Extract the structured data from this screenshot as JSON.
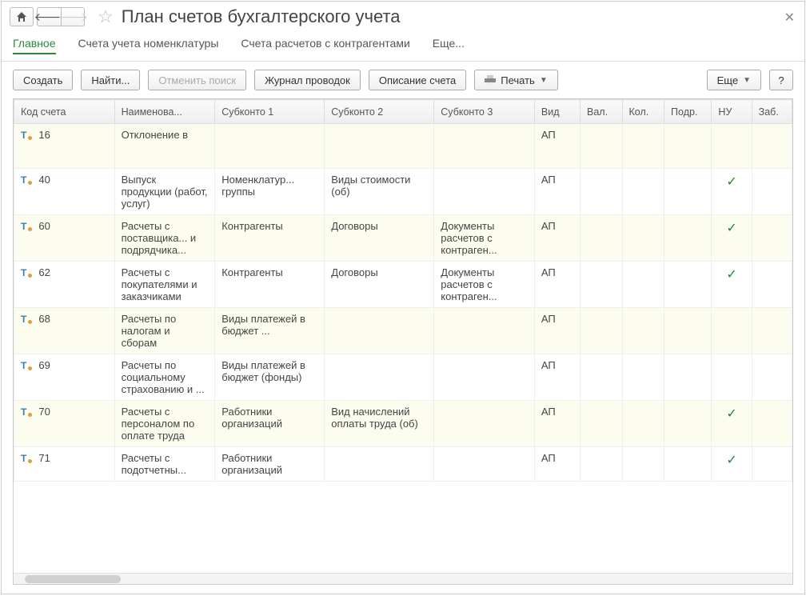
{
  "header": {
    "title": "План счетов бухгалтерского учета"
  },
  "tabs": {
    "main": "Главное",
    "nomenclature": "Счета учета номенклатуры",
    "counterparties": "Счета расчетов с контрагентами",
    "more": "Еще..."
  },
  "toolbar": {
    "create": "Создать",
    "find": "Найти...",
    "cancel_search": "Отменить поиск",
    "journal": "Журнал проводок",
    "description": "Описание счета",
    "print": "Печать",
    "more": "Еще",
    "help": "?"
  },
  "columns": {
    "code": "Код счета",
    "name": "Наименова...",
    "sub1": "Субконто 1",
    "sub2": "Субконто 2",
    "sub3": "Субконто 3",
    "kind": "Вид",
    "val": "Вал.",
    "kol": "Кол.",
    "podr": "Подр.",
    "nu": "НУ",
    "zab": "Заб."
  },
  "col_widths": [
    "110",
    "110",
    "120",
    "120",
    "110",
    "50",
    "46",
    "46",
    "52",
    "44",
    "44"
  ],
  "rows": [
    {
      "code": "16",
      "name": "Отклонение в",
      "sub1": "",
      "sub2": "",
      "sub3": "",
      "kind": "АП",
      "nu": false,
      "big": true,
      "alt": true
    },
    {
      "code": "40",
      "name": "Выпуск продукции (работ, услуг)",
      "sub1": "Номенклатур... группы",
      "sub2": "Виды стоимости (об)",
      "sub3": "",
      "kind": "АП",
      "nu": true,
      "alt": false
    },
    {
      "code": "60",
      "name": "Расчеты с поставщика... и подрядчика...",
      "sub1": "Контрагенты",
      "sub2": "Договоры",
      "sub3": "Документы расчетов с контраген...",
      "kind": "АП",
      "nu": true,
      "alt": true
    },
    {
      "code": "62",
      "name": "Расчеты с покупателями и заказчиками",
      "sub1": "Контрагенты",
      "sub2": "Договоры",
      "sub3": "Документы расчетов с контраген...",
      "kind": "АП",
      "nu": true,
      "alt": false
    },
    {
      "code": "68",
      "name": "Расчеты по налогам и сборам",
      "sub1": "Виды платежей в бюджет ...",
      "sub2": "",
      "sub3": "",
      "kind": "АП",
      "nu": false,
      "alt": true
    },
    {
      "code": "69",
      "name": "Расчеты по социальному страхованию и ...",
      "sub1": "Виды платежей в бюджет (фонды)",
      "sub2": "",
      "sub3": "",
      "kind": "АП",
      "nu": false,
      "alt": false
    },
    {
      "code": "70",
      "name": "Расчеты с персоналом по оплате труда",
      "sub1": "Работники организаций",
      "sub2": "Вид начислений оплаты труда (об)",
      "sub3": "",
      "kind": "АП",
      "nu": true,
      "alt": true
    },
    {
      "code": "71",
      "name": "Расчеты с подотчетны...",
      "sub1": "Работники организаций",
      "sub2": "",
      "sub3": "",
      "kind": "АП",
      "nu": true,
      "alt": false
    }
  ],
  "colors": {
    "active_tab": "#2a8a3a",
    "check": "#1a8a3a",
    "alt_row": "#fdfdef"
  }
}
